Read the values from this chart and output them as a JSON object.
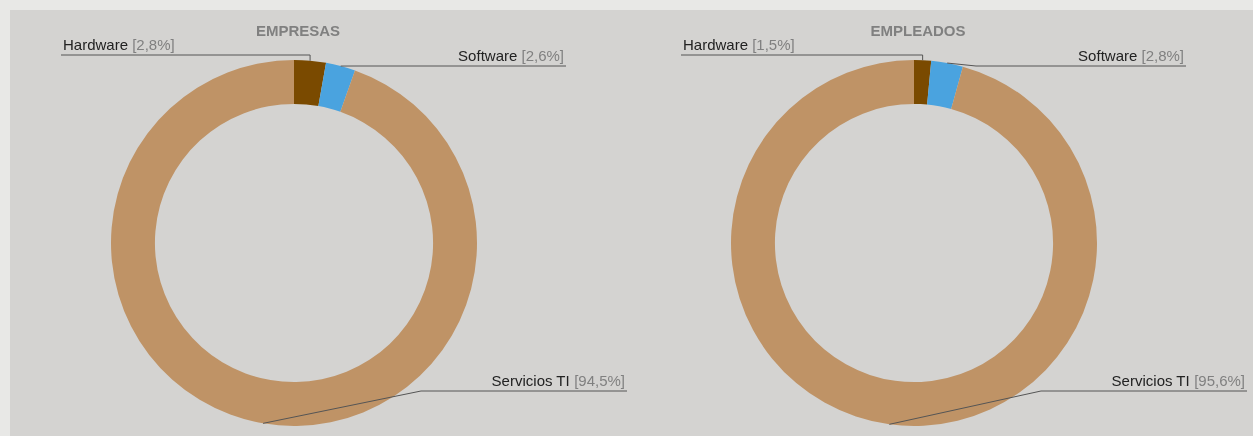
{
  "chart_data": [
    {
      "type": "donut",
      "title": "EMPRESAS",
      "categories": [
        "Hardware",
        "Software",
        "Servicios TI"
      ],
      "values": [
        2.8,
        2.6,
        94.5
      ],
      "colors": [
        "#7a4a00",
        "#4aa3df",
        "#bf9366"
      ],
      "value_labels": [
        "[2,8%]",
        "[2,6%]",
        "[94,5%]"
      ]
    },
    {
      "type": "donut",
      "title": "EMPLEADOS",
      "categories": [
        "Hardware",
        "Software",
        "Servicios TI"
      ],
      "values": [
        1.5,
        2.8,
        95.6
      ],
      "colors": [
        "#7a4a00",
        "#4aa3df",
        "#bf9366"
      ],
      "value_labels": [
        "[1,5%]",
        "[2,8%]",
        "[95,6%]"
      ]
    }
  ]
}
